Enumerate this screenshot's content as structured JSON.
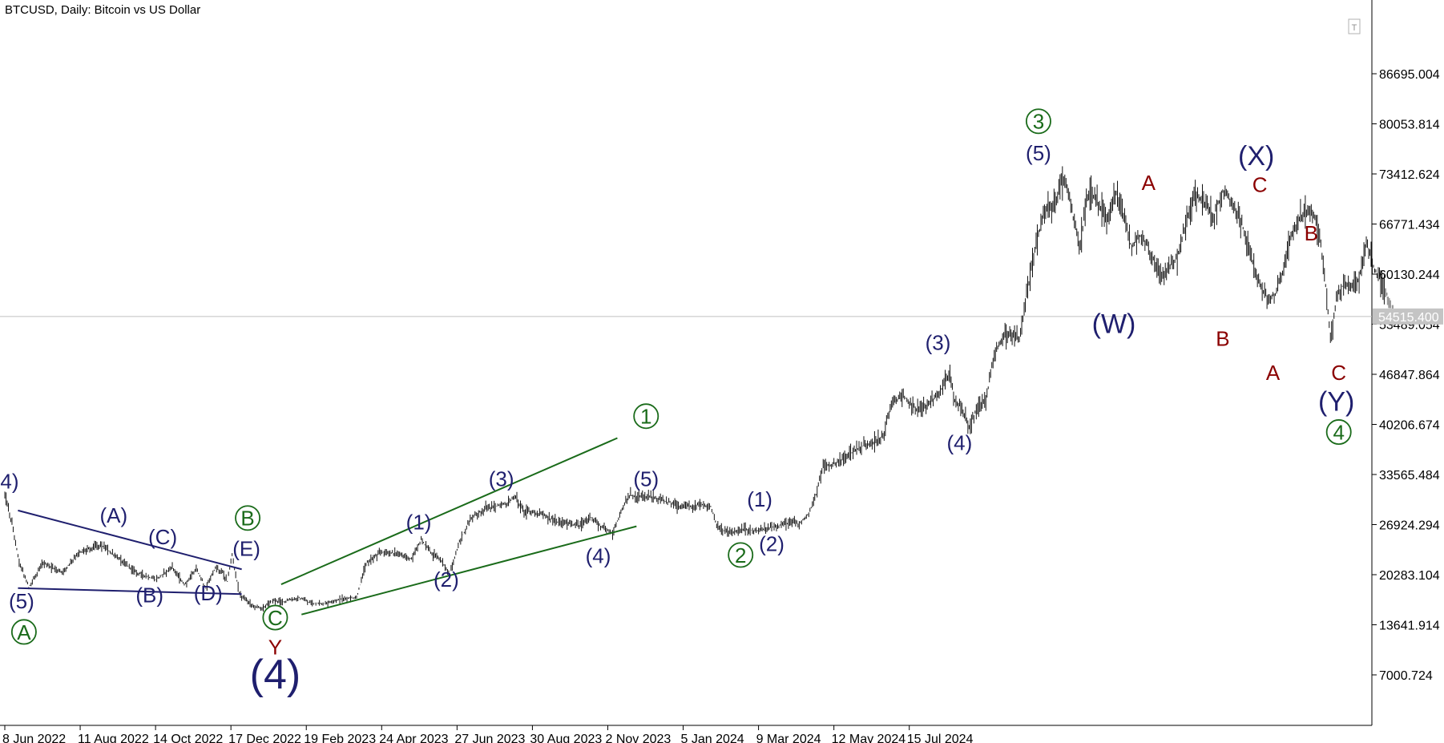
{
  "chart_data": {
    "type": "line",
    "title": "BTCUSD, Daily:  Bitcoin vs US Dollar",
    "x_tick_labels": [
      "8 Jun 2022",
      "11 Aug 2022",
      "14 Oct 2022",
      "17 Dec 2022",
      "19 Feb 2023",
      "24 Apr 2023",
      "27 Jun 2023",
      "30 Aug 2023",
      "2 Nov 2023",
      "5 Jan 2024",
      "9 Mar 2024",
      "12 May 2024",
      "15 Jul 2024"
    ],
    "y_ticks": [
      7000.724,
      13641.914,
      20283.104,
      26924.294,
      33565.484,
      40206.674,
      46847.864,
      53489.054,
      60130.244,
      66771.434,
      73412.624,
      80053.814,
      86695.004
    ],
    "y_tick_labels": [
      "7000.724",
      "13641.914",
      "20283.104",
      "26924.294",
      "33565.484",
      "40206.674",
      "46847.864",
      "53489.054",
      "60130.244",
      "66771.434",
      "73412.624",
      "80053.814",
      "86695.004"
    ],
    "ylim": [
      1500,
      93500
    ],
    "current_price": 54515.4,
    "current_price_label": "54515.400",
    "grid": false,
    "price_path_days": [
      [
        0,
        31000
      ],
      [
        6,
        27000
      ],
      [
        12,
        22000
      ],
      [
        20,
        18600
      ],
      [
        32,
        21800
      ],
      [
        48,
        20600
      ],
      [
        62,
        23200
      ],
      [
        80,
        24300
      ],
      [
        96,
        22300
      ],
      [
        110,
        20600
      ],
      [
        126,
        19600
      ],
      [
        140,
        21300
      ],
      [
        150,
        18900
      ],
      [
        160,
        21000
      ],
      [
        168,
        18500
      ],
      [
        176,
        21200
      ],
      [
        182,
        20600
      ],
      [
        186,
        19400
      ],
      [
        190,
        22900
      ],
      [
        196,
        17800
      ],
      [
        203,
        16700
      ],
      [
        208,
        16100
      ],
      [
        216,
        15900
      ],
      [
        224,
        16900
      ],
      [
        232,
        16700
      ],
      [
        246,
        17200
      ],
      [
        254,
        16600
      ],
      [
        266,
        16400
      ],
      [
        282,
        17100
      ],
      [
        294,
        17200
      ],
      [
        302,
        21800
      ],
      [
        315,
        23300
      ],
      [
        328,
        23100
      ],
      [
        340,
        22300
      ],
      [
        348,
        24900
      ],
      [
        356,
        23200
      ],
      [
        364,
        22300
      ],
      [
        372,
        20300
      ],
      [
        380,
        24600
      ],
      [
        390,
        27900
      ],
      [
        402,
        29100
      ],
      [
        418,
        29600
      ],
      [
        426,
        30600
      ],
      [
        434,
        28800
      ],
      [
        448,
        28300
      ],
      [
        462,
        27300
      ],
      [
        480,
        26800
      ],
      [
        490,
        27900
      ],
      [
        498,
        26700
      ],
      [
        508,
        25900
      ],
      [
        514,
        28200
      ],
      [
        522,
        30800
      ],
      [
        536,
        30600
      ],
      [
        548,
        30300
      ],
      [
        566,
        29200
      ],
      [
        580,
        29600
      ],
      [
        590,
        29300
      ],
      [
        596,
        26400
      ],
      [
        606,
        25900
      ],
      [
        618,
        26300
      ],
      [
        630,
        26100
      ],
      [
        640,
        26500
      ],
      [
        650,
        26900
      ],
      [
        658,
        27300
      ],
      [
        664,
        27000
      ],
      [
        672,
        28400
      ],
      [
        678,
        30900
      ],
      [
        684,
        34600
      ],
      [
        696,
        35100
      ],
      [
        706,
        36300
      ],
      [
        716,
        37300
      ],
      [
        726,
        37800
      ],
      [
        734,
        38700
      ],
      [
        742,
        43400
      ],
      [
        752,
        43800
      ],
      [
        762,
        42300
      ],
      [
        774,
        43000
      ],
      [
        782,
        44600
      ],
      [
        790,
        46900
      ],
      [
        794,
        43300
      ],
      [
        800,
        42400
      ],
      [
        806,
        39900
      ],
      [
        812,
        42200
      ],
      [
        820,
        43200
      ],
      [
        826,
        48700
      ],
      [
        834,
        51900
      ],
      [
        842,
        51900
      ],
      [
        848,
        51400
      ],
      [
        854,
        57100
      ],
      [
        860,
        62600
      ],
      [
        868,
        68000
      ],
      [
        876,
        69200
      ],
      [
        886,
        73200
      ],
      [
        892,
        68600
      ],
      [
        898,
        63600
      ],
      [
        906,
        70900
      ],
      [
        914,
        69400
      ],
      [
        922,
        67200
      ],
      [
        928,
        71100
      ],
      [
        934,
        68700
      ],
      [
        942,
        63600
      ],
      [
        950,
        65400
      ],
      [
        958,
        62900
      ],
      [
        966,
        59500
      ],
      [
        972,
        61000
      ],
      [
        980,
        62300
      ],
      [
        988,
        67400
      ],
      [
        994,
        70400
      ],
      [
        1002,
        69900
      ],
      [
        1010,
        67600
      ],
      [
        1018,
        71100
      ],
      [
        1026,
        69600
      ],
      [
        1034,
        66800
      ],
      [
        1042,
        62400
      ],
      [
        1050,
        58200
      ],
      [
        1056,
        56900
      ],
      [
        1062,
        57600
      ],
      [
        1068,
        60200
      ],
      [
        1074,
        64700
      ],
      [
        1082,
        67300
      ],
      [
        1090,
        68900
      ],
      [
        1096,
        67400
      ],
      [
        1100,
        64200
      ],
      [
        1104,
        58700
      ],
      [
        1108,
        51400
      ],
      [
        1114,
        57600
      ],
      [
        1120,
        59000
      ],
      [
        1126,
        58700
      ],
      [
        1132,
        59500
      ],
      [
        1138,
        64200
      ],
      [
        1144,
        61200
      ],
      [
        1150,
        59200
      ],
      [
        1156,
        56900
      ],
      [
        1160,
        54515
      ]
    ],
    "wedge_lines": [
      {
        "group": "triangle",
        "color": "#1f1f6e",
        "from": [
          11,
          28800
        ],
        "to": [
          198,
          21000
        ]
      },
      {
        "group": "triangle",
        "color": "#1f1f6e",
        "from": [
          11,
          18500
        ],
        "to": [
          198,
          17700
        ]
      },
      {
        "group": "wedge",
        "color": "#1a6b1a",
        "from": [
          231,
          19000
        ],
        "to": [
          512,
          38400
        ]
      },
      {
        "group": "wedge",
        "color": "#1a6b1a",
        "from": [
          248,
          15000
        ],
        "to": [
          528,
          26700
        ]
      }
    ],
    "wave_labels": [
      {
        "text": "4)",
        "day": 4,
        "price": 31700,
        "color": "#1f1f6e",
        "size": "md",
        "circled": false
      },
      {
        "text": "(5)",
        "day": 14,
        "price": 15800,
        "color": "#1f1f6e",
        "size": "md",
        "circled": false
      },
      {
        "text": "A",
        "day": 16,
        "price": 11700,
        "color": "#1a6b1a",
        "size": "md",
        "circled": true
      },
      {
        "text": "(A)",
        "day": 91,
        "price": 27200,
        "color": "#1f1f6e",
        "size": "md",
        "circled": false
      },
      {
        "text": "(B)",
        "day": 121,
        "price": 16600,
        "color": "#1f1f6e",
        "size": "md",
        "circled": false
      },
      {
        "text": "(C)",
        "day": 132,
        "price": 24300,
        "color": "#1f1f6e",
        "size": "md",
        "circled": false
      },
      {
        "text": "(D)",
        "day": 170,
        "price": 16900,
        "color": "#1f1f6e",
        "size": "md",
        "circled": false
      },
      {
        "text": "B",
        "day": 203,
        "price": 26800,
        "color": "#1a6b1a",
        "size": "md",
        "circled": true
      },
      {
        "text": "(E)",
        "day": 202,
        "price": 22800,
        "color": "#1f1f6e",
        "size": "md",
        "circled": false
      },
      {
        "text": "C",
        "day": 226,
        "price": 13600,
        "color": "#1a6b1a",
        "size": "md",
        "circled": true
      },
      {
        "text": "Y",
        "day": 226,
        "price": 9700,
        "color": "#8b0000",
        "size": "md",
        "circled": false
      },
      {
        "text": "(4)",
        "day": 226,
        "price": 5200,
        "color": "#1f1f6e",
        "size": "xl",
        "circled": false
      },
      {
        "text": "(1)",
        "day": 346,
        "price": 26300,
        "color": "#1f1f6e",
        "size": "md",
        "circled": false
      },
      {
        "text": "(2)",
        "day": 369,
        "price": 18700,
        "color": "#1f1f6e",
        "size": "md",
        "circled": false
      },
      {
        "text": "(3)",
        "day": 415,
        "price": 32000,
        "color": "#1f1f6e",
        "size": "md",
        "circled": false
      },
      {
        "text": "(4)",
        "day": 496,
        "price": 21800,
        "color": "#1f1f6e",
        "size": "md",
        "circled": false
      },
      {
        "text": "(5)",
        "day": 536,
        "price": 32000,
        "color": "#1f1f6e",
        "size": "md",
        "circled": false
      },
      {
        "text": "1",
        "day": 536,
        "price": 40300,
        "color": "#1a6b1a",
        "size": "md",
        "circled": true
      },
      {
        "text": "(1)",
        "day": 631,
        "price": 29300,
        "color": "#1f1f6e",
        "size": "md",
        "circled": false
      },
      {
        "text": "2",
        "day": 615,
        "price": 21900,
        "color": "#1a6b1a",
        "size": "md",
        "circled": true
      },
      {
        "text": "(2)",
        "day": 641,
        "price": 23400,
        "color": "#1f1f6e",
        "size": "md",
        "circled": false
      },
      {
        "text": "(3)",
        "day": 780,
        "price": 50100,
        "color": "#1f1f6e",
        "size": "md",
        "circled": false
      },
      {
        "text": "(4)",
        "day": 798,
        "price": 36800,
        "color": "#1f1f6e",
        "size": "md",
        "circled": false
      },
      {
        "text": "3",
        "day": 864,
        "price": 79400,
        "color": "#1a6b1a",
        "size": "md",
        "circled": true
      },
      {
        "text": "(5)",
        "day": 864,
        "price": 75200,
        "color": "#1f1f6e",
        "size": "md",
        "circled": false
      },
      {
        "text": "A",
        "day": 956,
        "price": 71300,
        "color": "#8b0000",
        "size": "md",
        "circled": false
      },
      {
        "text": "(W)",
        "day": 927,
        "price": 52300,
        "color": "#1f1f6e",
        "size": "lg",
        "circled": false
      },
      {
        "text": "(X)",
        "day": 1046,
        "price": 74600,
        "color": "#1f1f6e",
        "size": "lg",
        "circled": false
      },
      {
        "text": "C",
        "day": 1049,
        "price": 71000,
        "color": "#8b0000",
        "size": "md",
        "circled": false
      },
      {
        "text": "B",
        "day": 1018,
        "price": 50600,
        "color": "#8b0000",
        "size": "md",
        "circled": false
      },
      {
        "text": "B",
        "day": 1092,
        "price": 64600,
        "color": "#8b0000",
        "size": "md",
        "circled": false
      },
      {
        "text": "A",
        "day": 1060,
        "price": 46100,
        "color": "#8b0000",
        "size": "md",
        "circled": false
      },
      {
        "text": "C",
        "day": 1115,
        "price": 46100,
        "color": "#8b0000",
        "size": "md",
        "circled": false
      },
      {
        "text": "(Y)",
        "day": 1113,
        "price": 42000,
        "color": "#1f1f6e",
        "size": "lg",
        "circled": false
      },
      {
        "text": "4",
        "day": 1115,
        "price": 38200,
        "color": "#1a6b1a",
        "size": "md",
        "circled": true
      }
    ]
  },
  "scroll_marker_label": "T"
}
